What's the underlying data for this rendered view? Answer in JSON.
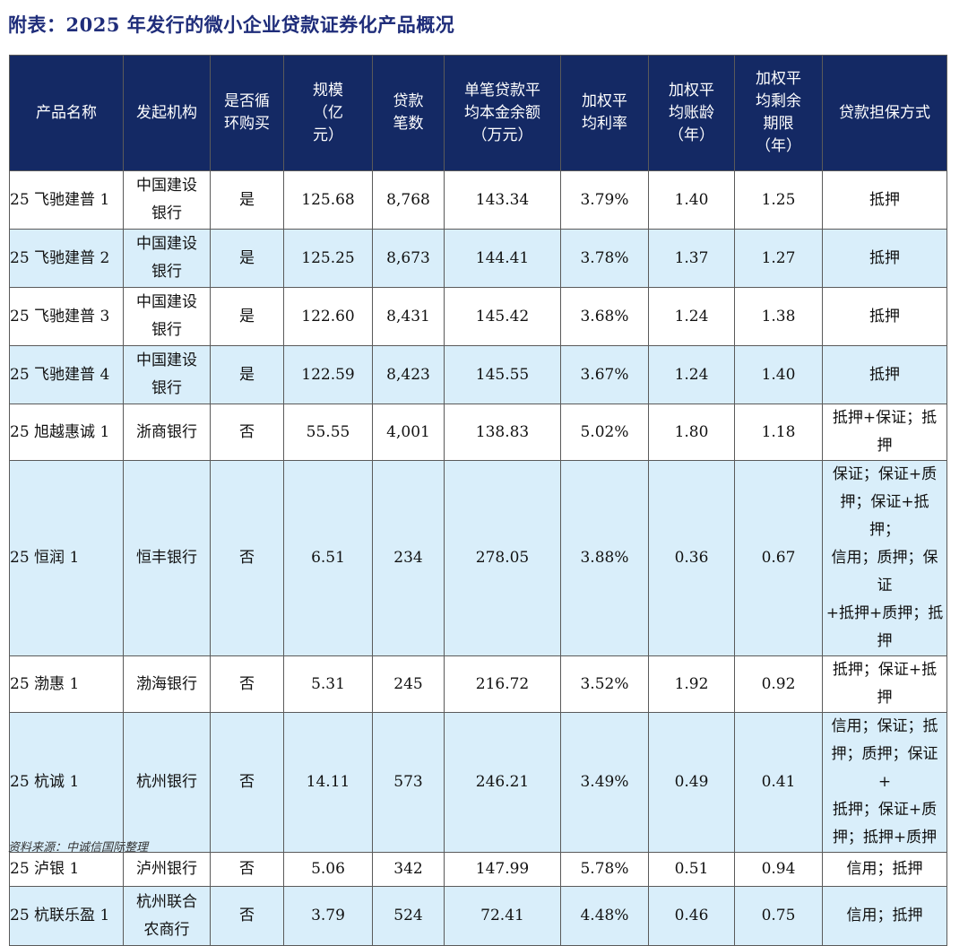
{
  "title": "附表：2025 年发行的微小企业贷款证券化产品概况",
  "headers": [
    "产品名称",
    "发起机构",
    "是否循\n环购买",
    "规模\n（亿\n元）",
    "贷款\n笔数",
    "单笔贷款平\n均本金余额\n（万元）",
    "加权平\n均利率",
    "加权平\n均账龄\n（年）",
    "加权平\n均剩余\n期限\n（年）",
    "贷款担保方式"
  ],
  "rows": [
    {
      "cells": [
        "25 飞驰建普 1",
        "中国建设\n银行",
        "是",
        "125.68",
        "8,768",
        "143.34",
        "3.79%",
        "1.40",
        "1.25",
        "抵押"
      ]
    },
    {
      "cells": [
        "25 飞驰建普 2",
        "中国建设\n银行",
        "是",
        "125.25",
        "8,673",
        "144.41",
        "3.78%",
        "1.37",
        "1.27",
        "抵押"
      ]
    },
    {
      "cells": [
        "25 飞驰建普 3",
        "中国建设\n银行",
        "是",
        "122.60",
        "8,431",
        "145.42",
        "3.68%",
        "1.24",
        "1.38",
        "抵押"
      ]
    },
    {
      "cells": [
        "25 飞驰建普 4",
        "中国建设\n银行",
        "是",
        "122.59",
        "8,423",
        "145.55",
        "3.67%",
        "1.24",
        "1.40",
        "抵押"
      ]
    },
    {
      "cells": [
        "25 旭越惠诚 1",
        "浙商银行",
        "否",
        "55.55",
        "4,001",
        "138.83",
        "5.02%",
        "1.80",
        "1.18",
        "抵押+保证；抵押"
      ]
    },
    {
      "cells": [
        "25 恒润 1",
        "恒丰银行",
        "否",
        "6.51",
        "234",
        "278.05",
        "3.88%",
        "0.36",
        "0.67",
        "保证；保证+质\n押；保证+抵押；\n信用；质押；保证\n+抵押+质押；抵\n押"
      ]
    },
    {
      "cells": [
        "25 渤惠 1",
        "渤海银行",
        "否",
        "5.31",
        "245",
        "216.72",
        "3.52%",
        "1.92",
        "0.92",
        "抵押；保证+抵押"
      ]
    },
    {
      "cells": [
        "25 杭诚 1",
        "杭州银行",
        "否",
        "14.11",
        "573",
        "246.21",
        "3.49%",
        "0.49",
        "0.41",
        "信用；保证；抵\n押；质押；保证+\n抵押；保证+质\n押；抵押+质押"
      ]
    },
    {
      "cells": [
        "25 泸银 1",
        "泸州银行",
        "否",
        "5.06",
        "342",
        "147.99",
        "5.78%",
        "0.51",
        "0.94",
        "信用；抵押"
      ]
    },
    {
      "cells": [
        "25 杭联乐盈 1",
        "杭州联合\n农商行",
        "否",
        "3.79",
        "524",
        "72.41",
        "4.48%",
        "0.46",
        "0.75",
        "信用；抵押"
      ]
    }
  ],
  "source": "资料来源：中诚信国际整理"
}
